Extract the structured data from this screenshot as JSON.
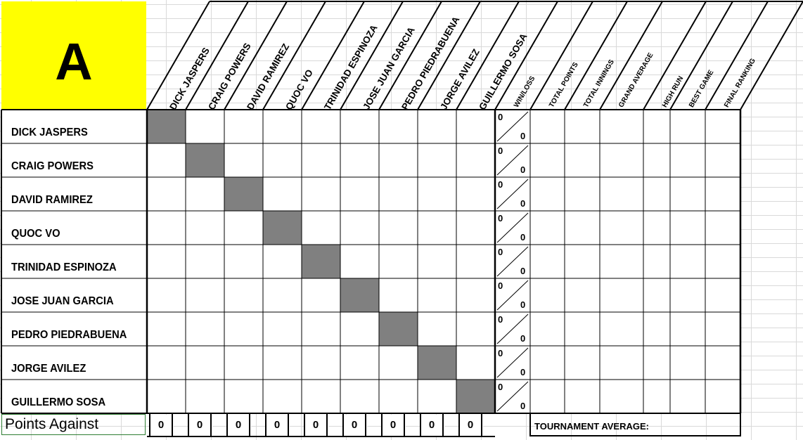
{
  "group_label": "A",
  "players": [
    "DICK JASPERS",
    "CRAIG POWERS",
    "DAVID RAMIREZ",
    "QUOC VO",
    "TRINIDAD ESPINOZA",
    "JOSE JUAN GARCIA",
    "PEDRO PIEDRABUENA",
    "JORGE AVILEZ",
    "GUILLERMO SOSA"
  ],
  "stat_headers": [
    "WIN/LOSS",
    "TOTAL POINTS",
    "TOTAL INNINGS",
    "GRAND AVERAGE",
    "HIGH RUN",
    "BEST GAME",
    "FINAL RANKING"
  ],
  "win_loss": [
    {
      "wins": "0",
      "losses": "0"
    },
    {
      "wins": "0",
      "losses": "0"
    },
    {
      "wins": "0",
      "losses": "0"
    },
    {
      "wins": "0",
      "losses": "0"
    },
    {
      "wins": "0",
      "losses": "0"
    },
    {
      "wins": "0",
      "losses": "0"
    },
    {
      "wins": "0",
      "losses": "0"
    },
    {
      "wins": "0",
      "losses": "0"
    },
    {
      "wins": "0",
      "losses": "0"
    }
  ],
  "points_against_label": "Points Against",
  "points_against_values": [
    "0",
    "0",
    "0",
    "0",
    "0",
    "0",
    "0",
    "0",
    "0"
  ],
  "tournament_average_label": "TOURNAMENT AVERAGE:",
  "colors": {
    "group_box": "#ffff00",
    "diagonal_cell": "#808080",
    "grid_line": "#000000"
  }
}
